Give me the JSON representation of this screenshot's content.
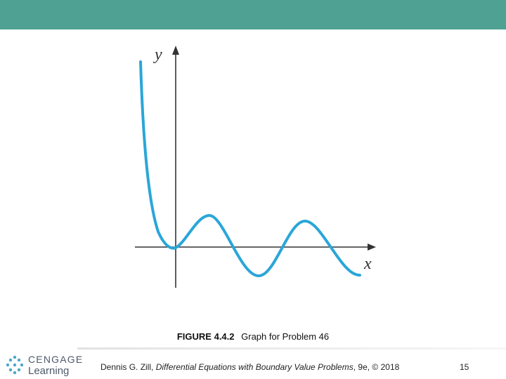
{
  "header": {
    "bar_color": "#4fa193"
  },
  "figure": {
    "curve_color": "#2aa6d8",
    "axis_color": "#333333",
    "y_axis_label": "y",
    "x_axis_label": "x"
  },
  "caption": {
    "label": "FIGURE 4.4.2",
    "text": "Graph for Problem 46"
  },
  "footer": {
    "logo_word1": "CENGAGE",
    "logo_word2": "Learning",
    "citation_prefix": "Dennis G. Zill, ",
    "citation_title": "Differential Equations with Boundary Value Problems",
    "citation_suffix": ", 9e, © 2018",
    "page_number": "15"
  }
}
